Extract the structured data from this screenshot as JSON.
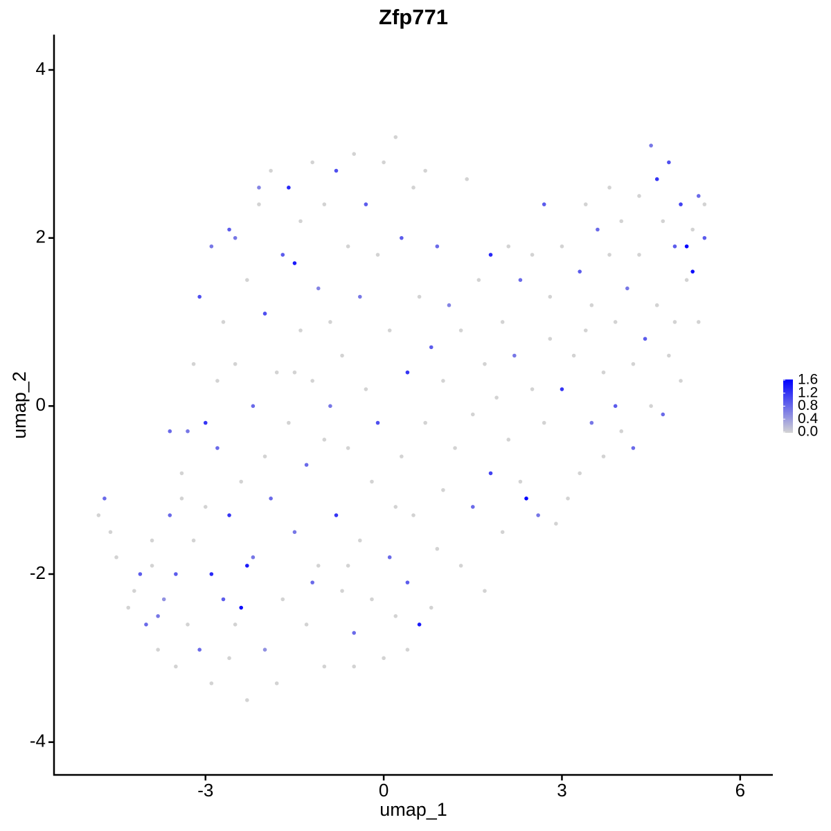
{
  "chart_data": {
    "type": "scatter",
    "title": "Zfp771",
    "x_label": "umap_1",
    "y_label": "umap_2",
    "xlim": [
      -5.55,
      6.55
    ],
    "xticks": [
      -3,
      0,
      3,
      6
    ],
    "ylim": [
      -4.39,
      4.42
    ],
    "yticks": [
      -4,
      -2,
      0,
      2,
      4
    ],
    "low_color": "#d3d3d3",
    "high_color": "#0000ff",
    "clim": [
      0,
      1.6
    ],
    "cticks": [
      {
        "value": 0,
        "label": "0.0"
      },
      0.4,
      0.8,
      1.2,
      1.6
    ],
    "x": [
      -4.8,
      -4.7,
      -4.6,
      -4.5,
      -4.2,
      -4.1,
      -4.0,
      -3.9,
      -3.8,
      -3.7,
      -3.6,
      -3.5,
      -3.5,
      -3.4,
      -3.3,
      -3.3,
      -3.2,
      -3.1,
      -3.0,
      -3.0,
      -2.9,
      -2.9,
      -2.8,
      -2.8,
      -2.7,
      -2.7,
      -2.6,
      -2.6,
      -2.5,
      -2.5,
      -2.5,
      -2.4,
      -2.4,
      -2.3,
      -2.3,
      -2.2,
      -2.2,
      -2.1,
      -2.0,
      -2.0,
      -2.0,
      -1.9,
      -1.9,
      -1.8,
      -1.8,
      -1.7,
      -1.7,
      -1.6,
      -1.6,
      -1.5,
      -1.5,
      -1.4,
      -1.4,
      -1.3,
      -1.3,
      -1.2,
      -1.2,
      -1.1,
      -1.1,
      -1.0,
      -1.0,
      -0.9,
      -0.9,
      -0.8,
      -0.8,
      -0.7,
      -0.7,
      -0.6,
      -0.6,
      -0.5,
      -0.5,
      -0.4,
      -0.4,
      -0.3,
      -0.3,
      -0.2,
      -0.2,
      -0.1,
      -0.1,
      0.0,
      0.0,
      0.1,
      0.1,
      0.2,
      0.2,
      0.3,
      0.3,
      0.4,
      0.4,
      0.5,
      0.5,
      0.6,
      0.6,
      0.7,
      0.7,
      0.8,
      0.8,
      0.9,
      0.9,
      1.0,
      1.0,
      1.1,
      1.2,
      1.3,
      1.3,
      1.4,
      1.5,
      1.5,
      1.6,
      1.7,
      1.7,
      1.8,
      1.8,
      1.9,
      2.0,
      2.0,
      2.1,
      2.1,
      2.2,
      2.3,
      2.3,
      2.4,
      2.5,
      2.5,
      2.6,
      2.7,
      2.7,
      2.8,
      2.8,
      2.9,
      3.0,
      3.0,
      3.1,
      3.2,
      3.3,
      3.3,
      3.4,
      3.4,
      3.5,
      3.5,
      3.6,
      3.7,
      3.7,
      3.8,
      3.8,
      3.9,
      3.9,
      4.0,
      4.0,
      4.1,
      4.2,
      4.2,
      4.3,
      4.3,
      4.4,
      4.5,
      4.5,
      4.6,
      4.6,
      4.7,
      4.7,
      4.8,
      4.8,
      4.9,
      4.9,
      5.0,
      5.0,
      5.1,
      5.1,
      5.2,
      5.2,
      5.3,
      5.3,
      5.4,
      5.4,
      -3.9,
      -3.6,
      -3.2,
      -3.1,
      -2.9,
      -2.6,
      -2.1,
      -1.5,
      -1.0,
      -0.5,
      0.2,
      -3.4,
      -2.3,
      -1.2,
      -0.6,
      0.4,
      -4.3,
      -3.8
    ],
    "values": [
      -1.3,
      -1.1,
      -1.5,
      -1.8,
      -2.2,
      -2.0,
      -2.6,
      -1.6,
      -2.9,
      -2.3,
      -1.3,
      -3.1,
      -2.0,
      -0.8,
      -2.6,
      -0.3,
      -1.6,
      -2.9,
      -0.2,
      -1.2,
      -3.3,
      -2.0,
      -0.5,
      0.3,
      -2.3,
      1.0,
      -1.3,
      -3.0,
      -2.6,
      2.0,
      0.5,
      -2.4,
      -0.9,
      1.5,
      -3.5,
      -1.8,
      0.0,
      2.4,
      1.1,
      -2.9,
      -0.6,
      2.8,
      -1.1,
      0.4,
      -3.3,
      1.8,
      -2.3,
      2.6,
      -0.2,
      1.7,
      -1.5,
      0.9,
      2.2,
      -2.6,
      -0.7,
      2.9,
      0.3,
      1.4,
      -1.9,
      2.4,
      -3.1,
      0.0,
      1.0,
      2.8,
      -1.3,
      -2.2,
      0.6,
      1.9,
      -0.5,
      3.0,
      -2.7,
      1.3,
      -1.6,
      0.2,
      2.4,
      -0.9,
      -2.3,
      1.8,
      -0.2,
      2.9,
      -3.0,
      0.9,
      -1.8,
      3.2,
      -2.5,
      2.0,
      -0.6,
      0.4,
      -2.9,
      2.6,
      -1.3,
      -2.6,
      1.3,
      -0.2,
      2.8,
      -2.4,
      0.7,
      -1.7,
      1.9,
      -1.0,
      0.3,
      1.2,
      -0.5,
      -1.9,
      0.9,
      2.7,
      -1.2,
      -0.1,
      1.5,
      0.5,
      -2.2,
      -0.8,
      1.8,
      0.1,
      1.0,
      -1.5,
      1.9,
      -0.4,
      0.6,
      1.5,
      -0.9,
      -1.1,
      0.2,
      1.8,
      -1.3,
      2.4,
      -0.2,
      1.3,
      0.8,
      -1.4,
      0.2,
      1.9,
      -1.1,
      0.6,
      1.6,
      -0.8,
      2.4,
      0.9,
      -0.2,
      1.2,
      2.1,
      -0.6,
      0.4,
      1.8,
      2.6,
      0.0,
      1.0,
      -0.3,
      2.2,
      1.4,
      0.5,
      -0.5,
      2.5,
      1.8,
      0.8,
      3.1,
      0.0,
      2.7,
      1.2,
      -0.1,
      2.2,
      2.9,
      0.6,
      1.9,
      1.0,
      2.4,
      0.3,
      1.9,
      1.5,
      1.6,
      2.1,
      2.5,
      1.0,
      2.0,
      2.4,
      -1.9,
      -0.3,
      0.5,
      1.3,
      1.9,
      2.1,
      2.6,
      0.4,
      -0.4,
      -3.1,
      -1.2,
      -1.1,
      -1.9,
      -2.1,
      -1.9,
      -2.1,
      -2.4,
      -2.5
    ],
    "expression": [
      0,
      0.8,
      0,
      0,
      0,
      0.9,
      0.8,
      0,
      0,
      0.5,
      0.8,
      0,
      0.9,
      0,
      0,
      0.7,
      0,
      0.8,
      1.2,
      0,
      0,
      1.3,
      0.8,
      0,
      0.9,
      0,
      1.2,
      0,
      0,
      0.7,
      0,
      1.5,
      0,
      0,
      0,
      0.7,
      0.8,
      0,
      1.0,
      0.5,
      0,
      0,
      0.8,
      0,
      0,
      0.9,
      0,
      1.3,
      0,
      1.4,
      0.7,
      0,
      0,
      0,
      0.8,
      0,
      0,
      0.6,
      0,
      0,
      0,
      0.7,
      0,
      1.0,
      1.2,
      0,
      0,
      0,
      0,
      0,
      0.8,
      0.7,
      0,
      0,
      0.9,
      0,
      0,
      0,
      1.0,
      0,
      0,
      0,
      0.8,
      0,
      0,
      0.9,
      0,
      1.2,
      0,
      0,
      0,
      1.4,
      0,
      0,
      0,
      0,
      0.9,
      0,
      0.8,
      0,
      0,
      0.6,
      0,
      0,
      0,
      0,
      0.8,
      0,
      0,
      0,
      0,
      1.1,
      1.3,
      0,
      0,
      0,
      0,
      0,
      0.7,
      0.8,
      0,
      1.6,
      0,
      0,
      0.7,
      0.9,
      0,
      0,
      0,
      0,
      1.2,
      0,
      0,
      0,
      0.9,
      0,
      0,
      0,
      0.7,
      0,
      0.8,
      0,
      0,
      0,
      0,
      0.9,
      0,
      0,
      0,
      0.7,
      0,
      0.8,
      0,
      0,
      0.9,
      0.7,
      0,
      1.2,
      0,
      0.8,
      0,
      1.0,
      0,
      0.9,
      0,
      1.1,
      0,
      1.6,
      0,
      1.5,
      0,
      0.8,
      0,
      0.9,
      0,
      0,
      0.8,
      0,
      1.0,
      0.7,
      0.9,
      0.6,
      0,
      0,
      0,
      0,
      0,
      1.4,
      0.8,
      0,
      0.9,
      0,
      0.7
    ]
  }
}
